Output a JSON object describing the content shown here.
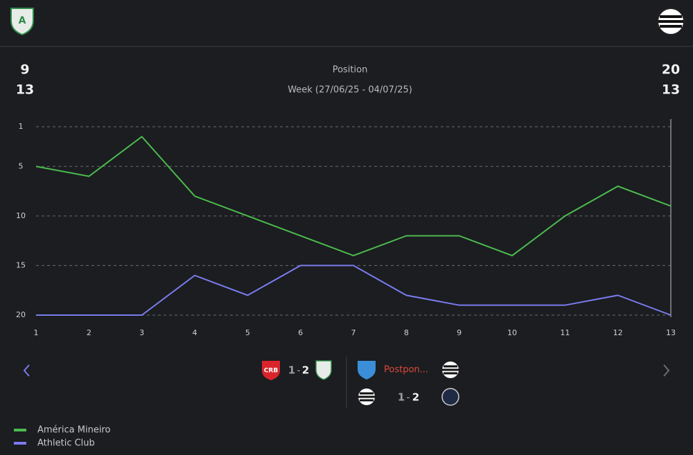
{
  "header": {
    "home_position": "9",
    "home_week": "13",
    "away_position": "20",
    "away_week": "13",
    "title": "Position",
    "subtitle": "Week (27/06/25 - 04/07/25)"
  },
  "chart_data": {
    "type": "line",
    "x": [
      1,
      2,
      3,
      4,
      5,
      6,
      7,
      8,
      9,
      10,
      11,
      12,
      13
    ],
    "xlim": [
      1,
      13
    ],
    "xticks": [
      1,
      2,
      3,
      4,
      5,
      6,
      7,
      8,
      9,
      10,
      11,
      12,
      13
    ],
    "ylim": [
      1,
      20
    ],
    "yticks": [
      1,
      5,
      10,
      15,
      20
    ],
    "y_inverted": true,
    "grid": true,
    "series": [
      {
        "name": "América Mineiro",
        "color": "#4cbb4f",
        "values": [
          5,
          6,
          2,
          8,
          10,
          12,
          14,
          12,
          12,
          14,
          10,
          7,
          9
        ]
      },
      {
        "name": "Athletic Club",
        "color": "#7b7cf0",
        "values": [
          20,
          20,
          20,
          16,
          18,
          15,
          15,
          18,
          19,
          19,
          19,
          18,
          20
        ]
      }
    ]
  },
  "matches": [
    {
      "home_score": "1",
      "separator": "-",
      "away_score": "2"
    },
    {
      "status": "Postpon..."
    },
    {
      "home_score": "1",
      "separator": "-",
      "away_score": "2"
    }
  ]
}
